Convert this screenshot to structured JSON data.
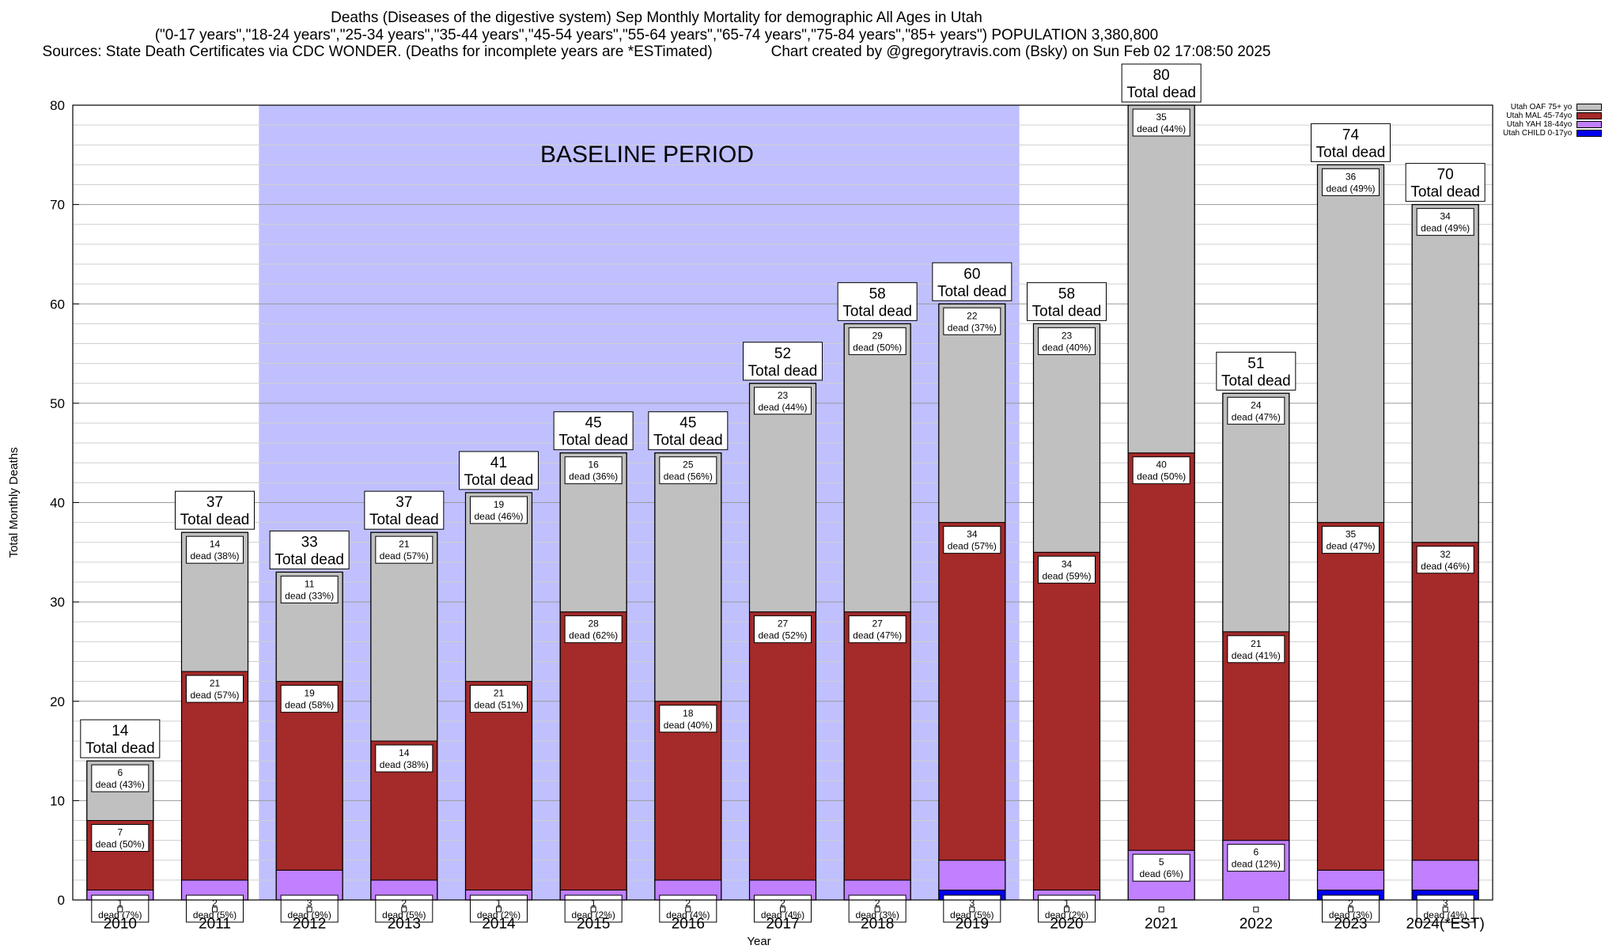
{
  "header": {
    "line1": "Deaths (Diseases of the digestive system) Sep Monthly Mortality for demographic All Ages in Utah",
    "line2": "(\"0-17 years\",\"18-24 years\",\"25-34 years\",\"35-44 years\",\"45-54 years\",\"55-64 years\",\"65-74 years\",\"75-84 years\",\"85+ years\") POPULATION 3,380,800",
    "line3": "Sources: State Death Certificates via CDC WONDER. (Deaths for incomplete years are *ESTimated)              Chart created by @gregorytravis.com (Bsky) on Sun Feb 02 17:08:50 2025"
  },
  "colors": {
    "child": "#0000ee",
    "yah": "#c080ff",
    "mal": "#a52a2a",
    "oaf": "#c0c0c0",
    "baseline": "#c0c0ff"
  },
  "legend": [
    {
      "label": "Utah OAF 75+ yo",
      "color": "#c0c0c0"
    },
    {
      "label": "Utah MAL 45-74yo",
      "color": "#a52a2a"
    },
    {
      "label": "Utah YAH 18-44yo",
      "color": "#c080ff"
    },
    {
      "label": "Utah CHILD 0-17yo",
      "color": "#0000ee"
    }
  ],
  "chart_data": {
    "type": "bar",
    "stacked": true,
    "ylabel": "Total Monthly Deaths",
    "xlabel": "Year",
    "ylim": [
      0,
      80
    ],
    "yticks": [
      0,
      10,
      20,
      30,
      40,
      50,
      60,
      70,
      80
    ],
    "grid": true,
    "legend_position": "top-right",
    "baseline_annotation": {
      "label": "BASELINE PERIOD",
      "from": "2012",
      "to": "2019"
    },
    "total_label_suffix": "Total dead",
    "segment_label_prefix": "dead",
    "categories": [
      "2010",
      "2011",
      "2012",
      "2013",
      "2014",
      "2015",
      "2016",
      "2017",
      "2018",
      "2019",
      "2020",
      "2021",
      "2022",
      "2023",
      "2024(*EST)"
    ],
    "totals": [
      14,
      37,
      33,
      37,
      41,
      45,
      45,
      52,
      58,
      60,
      58,
      80,
      51,
      74,
      70
    ],
    "series": [
      {
        "key": "child",
        "name": "Utah CHILD 0-17yo",
        "values": [
          0,
          0,
          0,
          0,
          0,
          0,
          0,
          0,
          0,
          1,
          0,
          0,
          0,
          1,
          1
        ],
        "labels": [
          "",
          "",
          "",
          "",
          "",
          "",
          "",
          "",
          "",
          "",
          "",
          "",
          "",
          "",
          ""
        ]
      },
      {
        "key": "yah",
        "name": "Utah YAH 18-44yo",
        "values": [
          1,
          2,
          3,
          2,
          1,
          1,
          2,
          2,
          2,
          3,
          1,
          5,
          6,
          2,
          3
        ],
        "labels": [
          "1|dead (7%)",
          "2|dead (5%)",
          "3|dead (9%)",
          "2|dead (5%)",
          "1|dead (2%)",
          "1|dead (2%)",
          "2|dead (4%)",
          "2|dead (4%)",
          "2|dead (3%)",
          "3|dead (5%)",
          "1|dead (2%)",
          "5|dead (6%)",
          "6|dead (12%)",
          "2|dead (3%)",
          "3|dead (4%)"
        ]
      },
      {
        "key": "mal",
        "name": "Utah MAL 45-74yo",
        "values": [
          7,
          21,
          19,
          14,
          21,
          28,
          18,
          27,
          27,
          34,
          34,
          40,
          21,
          35,
          32
        ],
        "labels": [
          "7|dead (50%)",
          "21|dead (57%)",
          "19|dead (58%)",
          "14|dead (38%)",
          "21|dead (51%)",
          "28|dead (62%)",
          "18|dead (40%)",
          "27|dead (52%)",
          "27|dead (47%)",
          "34|dead (57%)",
          "34|dead (59%)",
          "40|dead (50%)",
          "21|dead (41%)",
          "35|dead (47%)",
          "32|dead (46%)"
        ]
      },
      {
        "key": "oaf",
        "name": "Utah OAF 75+ yo",
        "values": [
          6,
          14,
          11,
          21,
          19,
          16,
          25,
          23,
          29,
          22,
          23,
          35,
          24,
          36,
          34
        ],
        "labels": [
          "6|dead (43%)",
          "14|dead (38%)",
          "11|dead (33%)",
          "21|dead (57%)",
          "19|dead (46%)",
          "16|dead (36%)",
          "25|dead (56%)",
          "23|dead (44%)",
          "29|dead (50%)",
          "22|dead (37%)",
          "23|dead (40%)",
          "35|dead (44%)",
          "24|dead (47%)",
          "36|dead (49%)",
          "34|dead (49%)"
        ]
      }
    ]
  }
}
